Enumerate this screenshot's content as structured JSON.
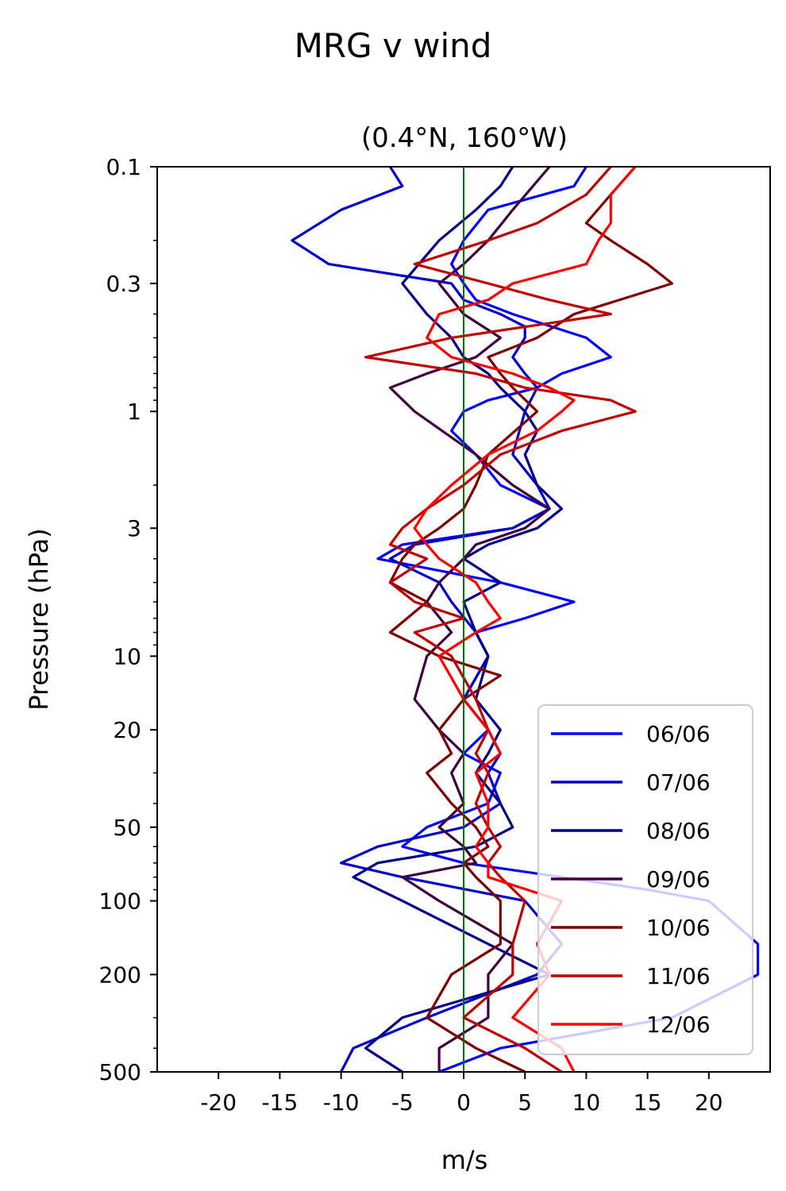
{
  "chart_data": {
    "type": "line",
    "title": "MRG v wind",
    "subtitle": "(0.4°N, 160°W)",
    "xlabel": "m/s",
    "ylabel": "Pressure (hPa)",
    "xlim": [
      -25,
      25
    ],
    "ylim": [
      500,
      0.1
    ],
    "yscale": "log",
    "x_ticks": [
      -20,
      -15,
      -10,
      -5,
      0,
      5,
      10,
      15,
      20
    ],
    "x_tick_labels": [
      "-20",
      "-15",
      "-10",
      "-5",
      "0",
      "5",
      "10",
      "15",
      "20"
    ],
    "y_ticks": [
      0.1,
      0.3,
      1,
      3,
      10,
      20,
      50,
      100,
      200,
      500
    ],
    "y_tick_labels": [
      "0.1",
      "0.3",
      "1",
      "3",
      "10",
      "20",
      "50",
      "100",
      "200",
      "500"
    ],
    "zero_line_color": "#007700",
    "grid": false,
    "legend_position": "lower-right",
    "series": [
      {
        "name": "06/06",
        "color": "#0000ff",
        "p": [
          0.1,
          0.12,
          0.15,
          0.2,
          0.25,
          0.3,
          0.35,
          0.4,
          0.5,
          0.6,
          0.7,
          0.8,
          0.9,
          1.0,
          1.2,
          1.5,
          2,
          2.5,
          3,
          3.5,
          4,
          5,
          6,
          7,
          8,
          10,
          15,
          20,
          25,
          30,
          40,
          50,
          60,
          70,
          80,
          90,
          100,
          150,
          200,
          300,
          400,
          500
        ],
        "x": [
          10,
          9,
          2,
          0,
          -1,
          0,
          1,
          4,
          10,
          12,
          8,
          6,
          2,
          0,
          -1,
          1,
          3,
          7,
          4,
          -5,
          -7,
          3,
          9,
          5,
          1,
          2,
          0,
          2,
          0,
          3,
          2,
          -3,
          -5,
          0,
          8,
          15,
          20,
          24,
          24,
          17,
          3,
          -2
        ]
      },
      {
        "name": "07/06",
        "color": "#0000cc",
        "p": [
          0.1,
          0.12,
          0.15,
          0.2,
          0.25,
          0.3,
          0.35,
          0.4,
          0.45,
          0.5,
          0.6,
          0.7,
          0.8,
          1.0,
          1.5,
          2,
          2.5,
          3,
          3.5,
          4,
          5,
          6,
          8,
          10,
          15,
          20,
          25,
          30,
          40,
          50,
          60,
          70,
          80,
          100,
          150,
          200,
          300,
          400,
          500
        ],
        "x": [
          -6,
          -5,
          -10,
          -14,
          -11,
          -1,
          0,
          3,
          5,
          5,
          4,
          5,
          6,
          5,
          4,
          6,
          7,
          4,
          -4,
          -6,
          -2,
          -1,
          1,
          2,
          0,
          2,
          3,
          2,
          3,
          0,
          -7,
          -10,
          -5,
          5,
          8,
          6,
          -3,
          -9,
          -10
        ]
      },
      {
        "name": "08/06",
        "color": "#00008b",
        "p": [
          0.1,
          0.12,
          0.15,
          0.2,
          0.3,
          0.4,
          0.5,
          0.6,
          0.7,
          0.8,
          1.0,
          1.2,
          1.5,
          2,
          2.5,
          3,
          3.5,
          4,
          5,
          6,
          8,
          10,
          15,
          20,
          25,
          30,
          40,
          50,
          60,
          70,
          80,
          100,
          150,
          200,
          300,
          400,
          500
        ],
        "x": [
          4,
          3,
          1,
          -2,
          -5,
          -3,
          -1,
          0,
          2,
          3,
          5,
          6,
          5,
          6,
          8,
          6,
          2,
          0,
          3,
          0,
          1,
          2,
          1,
          3,
          2,
          1,
          3,
          4,
          1,
          -7,
          -9,
          -5,
          2,
          7,
          -5,
          -8,
          -5
        ]
      },
      {
        "name": "09/06",
        "color": "#400040",
        "p": [
          0.1,
          0.15,
          0.2,
          0.25,
          0.3,
          0.4,
          0.5,
          0.6,
          0.7,
          0.8,
          1.0,
          1.5,
          2,
          2.5,
          3,
          3.5,
          4,
          5,
          6,
          8,
          10,
          15,
          20,
          25,
          30,
          40,
          50,
          60,
          70,
          80,
          100,
          150,
          200,
          300,
          400,
          500
        ],
        "x": [
          7,
          4,
          2,
          0,
          -2,
          0,
          3,
          1,
          -3,
          -6,
          -4,
          1,
          4,
          7,
          5,
          1,
          0,
          -2,
          -3,
          -1,
          -3,
          -4,
          -2,
          0,
          -1,
          0,
          -2,
          0,
          1,
          -5,
          -2,
          4,
          2,
          2,
          -2,
          -2
        ]
      },
      {
        "name": "10/06",
        "color": "#7f0000",
        "p": [
          0.1,
          0.13,
          0.17,
          0.2,
          0.25,
          0.3,
          0.4,
          0.5,
          0.6,
          0.7,
          0.8,
          1.0,
          1.5,
          2,
          2.5,
          3,
          3.5,
          4,
          5,
          6,
          8,
          10,
          12,
          15,
          20,
          25,
          30,
          40,
          50,
          60,
          70,
          80,
          100,
          150,
          200,
          300,
          400,
          500
        ],
        "x": [
          14,
          12,
          10,
          12,
          15,
          17,
          9,
          6,
          2,
          3,
          4,
          6,
          2,
          1,
          0,
          -2,
          -4,
          -5,
          -6,
          -3,
          -6,
          -2,
          3,
          0,
          -2,
          -1,
          -3,
          -1,
          1,
          2,
          0,
          1,
          3,
          3,
          -1,
          -3,
          1,
          5
        ]
      },
      {
        "name": "11/06",
        "color": "#c00000",
        "p": [
          0.1,
          0.13,
          0.17,
          0.2,
          0.25,
          0.3,
          0.35,
          0.4,
          0.5,
          0.6,
          0.7,
          0.8,
          0.9,
          1.0,
          1.2,
          1.5,
          2,
          2.5,
          3,
          3.5,
          4,
          5,
          6,
          7,
          8,
          10,
          15,
          20,
          25,
          30,
          40,
          50,
          60,
          70,
          80,
          100,
          150,
          200,
          300,
          400,
          500
        ],
        "x": [
          12,
          10,
          6,
          2,
          -4,
          2,
          7,
          12,
          -1,
          -8,
          1,
          5,
          12,
          14,
          8,
          3,
          0,
          -3,
          -5,
          -6,
          -3,
          -6,
          -4,
          0,
          -4,
          -1,
          1,
          2,
          1,
          2,
          1,
          2,
          3,
          2,
          3,
          5,
          4,
          4,
          0,
          5,
          8
        ]
      },
      {
        "name": "12/06",
        "color": "#ff0000",
        "p": [
          0.1,
          0.13,
          0.17,
          0.2,
          0.25,
          0.3,
          0.35,
          0.4,
          0.5,
          0.6,
          0.7,
          0.8,
          0.9,
          1.0,
          1.2,
          1.5,
          2,
          2.5,
          3,
          3.5,
          4,
          5,
          6,
          7,
          8,
          10,
          15,
          20,
          25,
          30,
          40,
          50,
          60,
          70,
          80,
          100,
          150,
          200,
          300,
          400,
          500
        ],
        "x": [
          14,
          12,
          12,
          11,
          10,
          4,
          2,
          -2,
          -3,
          -1,
          4,
          7,
          9,
          8,
          6,
          2,
          -1,
          -3,
          -4,
          -3,
          -2,
          1,
          2,
          3,
          1,
          -2,
          0,
          2,
          3,
          1,
          2,
          2,
          1,
          2,
          2,
          8,
          6,
          7,
          4,
          8,
          9
        ]
      }
    ]
  }
}
